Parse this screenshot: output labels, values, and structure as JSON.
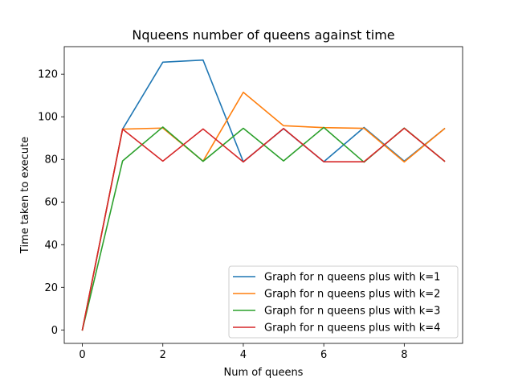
{
  "chart_data": {
    "type": "line",
    "title": "Nqueens number of queens against time",
    "xlabel": "Num of queens",
    "ylabel": "Time taken to execute",
    "x": [
      0,
      1,
      2,
      3,
      4,
      5,
      6,
      7,
      8,
      9
    ],
    "xlim": [
      -0.45,
      9.45
    ],
    "ylim": [
      -6.3,
      132.9
    ],
    "xticks": [
      0,
      2,
      4,
      6,
      8
    ],
    "yticks": [
      0,
      20,
      40,
      60,
      80,
      100,
      120
    ],
    "grid": false,
    "legend_position": "lower-right",
    "series": [
      {
        "name": "Graph for n queens plus with k=1",
        "color": "#1f77b4",
        "values": [
          0,
          94.2,
          125.6,
          126.6,
          78.9,
          94.4,
          78.9,
          95.0,
          79.2,
          94.4
        ]
      },
      {
        "name": "Graph for n queens plus with k=2",
        "color": "#ff7f0e",
        "values": [
          0,
          94.2,
          94.7,
          79.2,
          111.5,
          95.8,
          94.9,
          94.6,
          78.8,
          94.4
        ]
      },
      {
        "name": "Graph for n queens plus with k=3",
        "color": "#2ca02c",
        "values": [
          0,
          79.3,
          95.2,
          79.1,
          94.6,
          79.3,
          95.0,
          78.7,
          94.7,
          79.2
        ]
      },
      {
        "name": "Graph for n queens plus with k=4",
        "color": "#d62728",
        "values": [
          0,
          94.2,
          79.2,
          94.3,
          78.8,
          94.5,
          78.9,
          78.9,
          94.6,
          79.2
        ]
      }
    ]
  }
}
